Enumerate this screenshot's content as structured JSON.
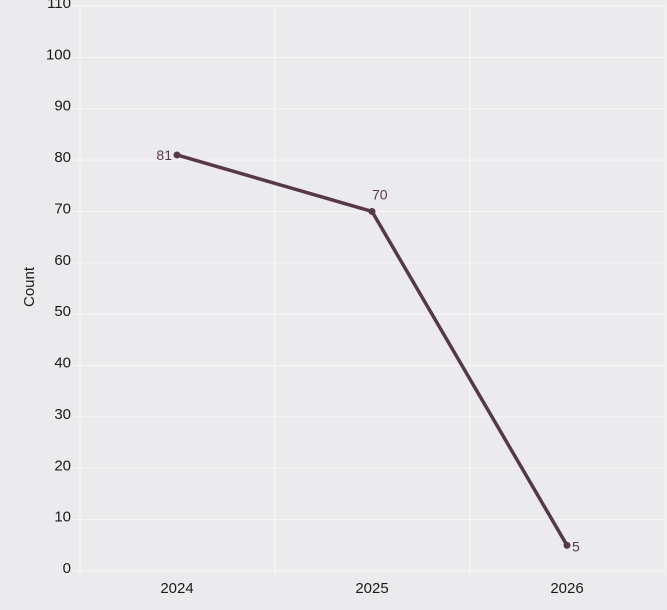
{
  "chart_data": {
    "type": "line",
    "title": "",
    "xlabel": "",
    "ylabel": "Count",
    "categories": [
      "2024",
      "2025",
      "2026"
    ],
    "series": [
      {
        "values": [
          81,
          70,
          5
        ],
        "color": "#563946"
      }
    ],
    "data_labels": [
      "81",
      "70",
      "5"
    ],
    "ylim": [
      0,
      110
    ],
    "yticks": [
      "0",
      "10",
      "20",
      "30",
      "40",
      "50",
      "60",
      "70",
      "80",
      "90",
      "100",
      "110"
    ],
    "grid": true,
    "background": "#ebebed",
    "grid_color": "#f7f7f8"
  }
}
